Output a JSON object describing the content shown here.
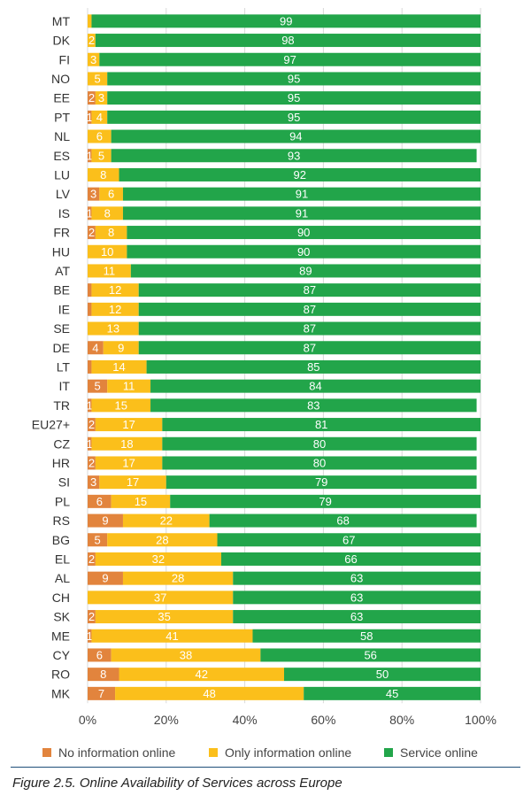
{
  "chart_data": {
    "type": "bar",
    "orientation": "horizontal",
    "stacked": true,
    "categories": [
      "MT",
      "DK",
      "FI",
      "NO",
      "EE",
      "PT",
      "NL",
      "ES",
      "LU",
      "LV",
      "IS",
      "FR",
      "HU",
      "AT",
      "BE",
      "IE",
      "SE",
      "DE",
      "LT",
      "IT",
      "TR",
      "EU27+",
      "CZ",
      "HR",
      "SI",
      "PL",
      "RS",
      "BG",
      "EL",
      "AL",
      "CH",
      "SK",
      "ME",
      "CY",
      "RO",
      "MK"
    ],
    "series": [
      {
        "name": "No information online",
        "color": "#e2843d",
        "values": [
          0,
          0,
          0,
          0,
          2,
          1,
          0,
          1,
          0,
          3,
          1,
          2,
          0,
          0,
          1,
          1,
          0,
          4,
          1,
          5,
          1,
          2,
          1,
          2,
          3,
          6,
          9,
          5,
          2,
          9,
          0,
          2,
          1,
          6,
          8,
          7
        ],
        "labels": [
          "",
          "",
          "",
          "",
          "2",
          "1",
          "",
          "1",
          "",
          "3",
          "1",
          "2",
          "",
          "",
          "",
          "",
          "",
          "4",
          "",
          "5",
          "1",
          "2",
          "1",
          "2",
          "3",
          "6",
          "9",
          "5",
          "2",
          "9",
          "",
          "2",
          "1",
          "6",
          "8",
          "7"
        ]
      },
      {
        "name": "Only information online",
        "color": "#fbbf1b",
        "values": [
          1,
          2,
          3,
          5,
          3,
          4,
          6,
          5,
          8,
          6,
          8,
          8,
          10,
          11,
          12,
          12,
          13,
          9,
          14,
          11,
          15,
          17,
          18,
          17,
          17,
          15,
          22,
          28,
          32,
          28,
          37,
          35,
          41,
          38,
          42,
          48
        ],
        "labels": [
          "",
          "2",
          "3",
          "5",
          "3",
          "4",
          "6",
          "5",
          "8",
          "6",
          "8",
          "8",
          "10",
          "11",
          "12",
          "12",
          "13",
          "9",
          "14",
          "11",
          "15",
          "17",
          "18",
          "17",
          "17",
          "15",
          "22",
          "28",
          "32",
          "28",
          "37",
          "35",
          "41",
          "38",
          "42",
          "48"
        ]
      },
      {
        "name": "Service online",
        "color": "#22a54a",
        "values": [
          99,
          98,
          97,
          95,
          95,
          95,
          94,
          93,
          92,
          91,
          91,
          90,
          90,
          89,
          87,
          87,
          87,
          87,
          85,
          84,
          83,
          81,
          80,
          80,
          79,
          79,
          68,
          67,
          66,
          63,
          63,
          63,
          58,
          56,
          50,
          45
        ],
        "labels": [
          "99",
          "98",
          "97",
          "95",
          "95",
          "95",
          "94",
          "93",
          "92",
          "91",
          "91",
          "90",
          "90",
          "89",
          "87",
          "87",
          "87",
          "87",
          "85",
          "84",
          "83",
          "81",
          "80",
          "80",
          "79",
          "79",
          "68",
          "67",
          "66",
          "63",
          "63",
          "63",
          "58",
          "56",
          "50",
          "45"
        ]
      }
    ],
    "x_ticks": [
      "0%",
      "20%",
      "40%",
      "60%",
      "80%",
      "100%"
    ],
    "xlim": [
      0,
      100
    ],
    "grid": true,
    "legend_position": "bottom",
    "caption": "Figure 2.5. Online Availability of Services across Europe"
  }
}
